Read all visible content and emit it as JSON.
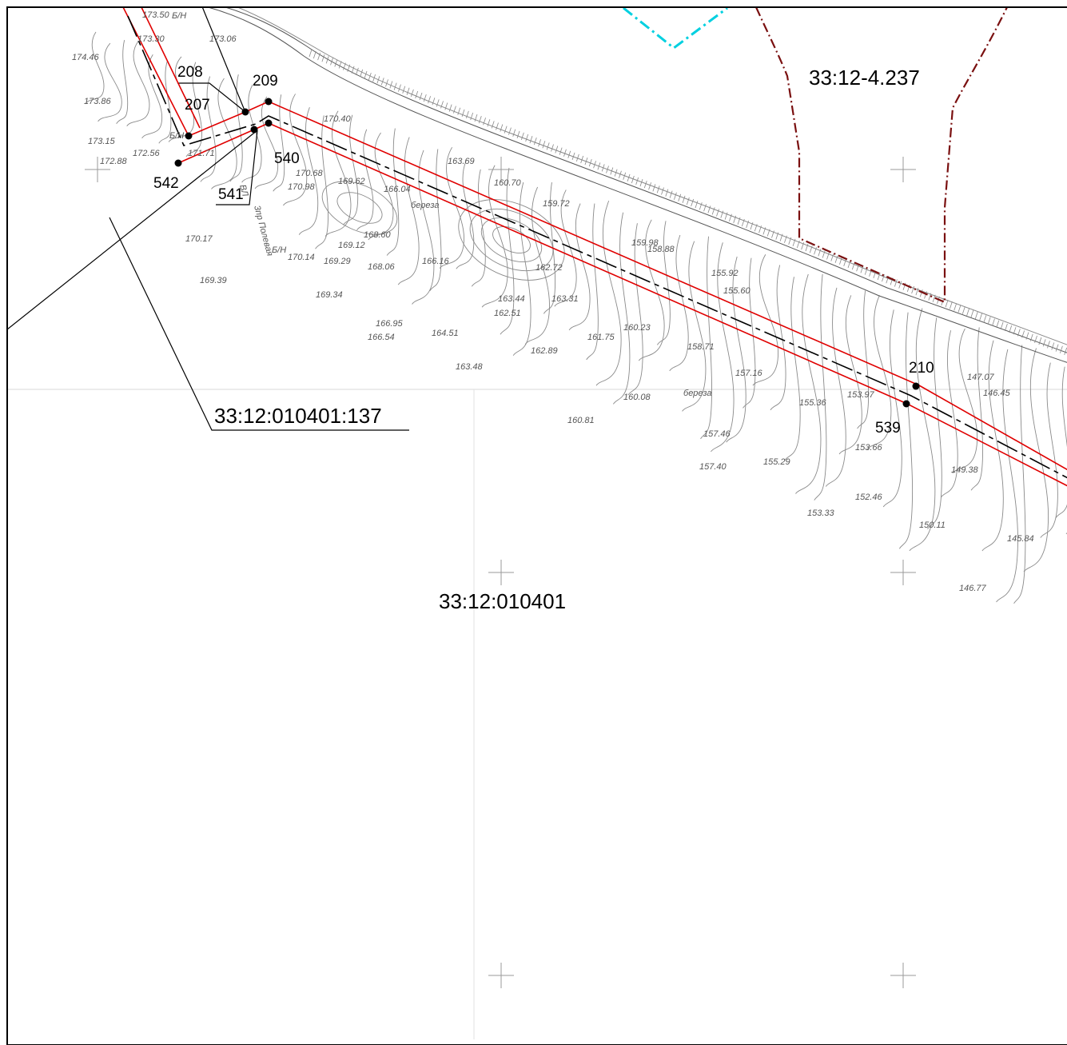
{
  "map": {
    "parcel_labels": {
      "main_parcel": "33:12:010401:137",
      "quarter": "33:12:010401",
      "neighbor_zone": "33:12-4.237"
    },
    "points": [
      {
        "id": "p207",
        "label": "207"
      },
      {
        "id": "p208",
        "label": "208"
      },
      {
        "id": "p209",
        "label": "209"
      },
      {
        "id": "p210",
        "label": "210"
      },
      {
        "id": "p539",
        "label": "539"
      },
      {
        "id": "p540",
        "label": "540"
      },
      {
        "id": "p541",
        "label": "541"
      },
      {
        "id": "p542",
        "label": "542"
      }
    ],
    "elevation_marks": [
      "173.50",
      "173.30",
      "173.06",
      "174.46",
      "173.86",
      "173.15",
      "172.88",
      "172.56",
      "171.71",
      "170.40",
      "170.68",
      "170.98",
      "169.62",
      "166.04",
      "163.69",
      "160.70",
      "159.72",
      "170.14",
      "169.12",
      "168.60",
      "169.29",
      "169.34",
      "168.06",
      "166.16",
      "162.72",
      "163.44",
      "162.51",
      "163.31",
      "161.75",
      "166.95",
      "166.54",
      "164.51",
      "163.48",
      "162.89",
      "160.23",
      "159.98",
      "158.88",
      "155.92",
      "155.60",
      "158.71",
      "157.16",
      "155.36",
      "153.97",
      "160.08",
      "160.81",
      "157.46",
      "157.40",
      "155.29",
      "153.66",
      "152.46",
      "153.33",
      "150.11",
      "149.38",
      "147.07",
      "146.45",
      "145.84",
      "146.77",
      "169.39",
      "170.17"
    ],
    "annotations": [
      "Б/Н",
      "Б/Н",
      "Б/Н",
      "береза",
      "береза",
      "ВЛ",
      "3пр Полевая"
    ],
    "colors": {
      "boundary_red": "#e00000",
      "zone_brown": "#7a1010",
      "cyan": "#00d0e0",
      "contour": "#8a8a8a"
    }
  }
}
